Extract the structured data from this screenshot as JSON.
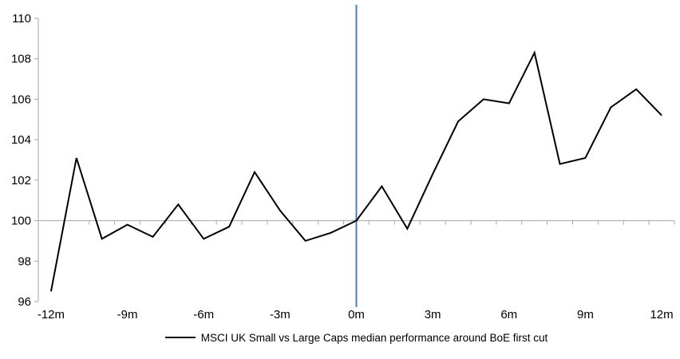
{
  "chart_data": {
    "type": "line",
    "title": "",
    "legend": "MSCI UK Small vs Large Caps median performance around BoE first cut",
    "x": [
      -12,
      -11,
      -10,
      -9,
      -8,
      -7,
      -6,
      -5,
      -4,
      -3,
      -2,
      -1,
      0,
      1,
      2,
      3,
      4,
      5,
      6,
      7,
      8,
      9,
      10,
      11,
      12
    ],
    "series": [
      {
        "name": "MSCI UK Small vs Large Caps median performance around BoE first cut",
        "values": [
          96.5,
          103.1,
          99.1,
          99.8,
          99.2,
          100.8,
          99.1,
          99.7,
          102.4,
          100.5,
          99.0,
          99.4,
          100.0,
          101.7,
          99.6,
          102.3,
          104.9,
          106.0,
          105.8,
          108.3,
          102.8,
          103.1,
          105.6,
          106.5,
          105.2
        ]
      }
    ],
    "xlim": [
      -12,
      12
    ],
    "ylim": [
      96,
      110
    ],
    "yticks": [
      96,
      98,
      100,
      102,
      104,
      106,
      108,
      110
    ],
    "xticks": [
      {
        "m": -12,
        "label": "-12m"
      },
      {
        "m": -9,
        "label": "-9m"
      },
      {
        "m": -6,
        "label": "-6m"
      },
      {
        "m": -3,
        "label": "-3m"
      },
      {
        "m": 0,
        "label": "0m"
      },
      {
        "m": 3,
        "label": "3m"
      },
      {
        "m": 6,
        "label": "6m"
      },
      {
        "m": 9,
        "label": "9m"
      },
      {
        "m": 12,
        "label": "12m"
      }
    ],
    "axis_cross_y": 100,
    "event_line_x": 0,
    "grid": false,
    "legend_position": "bottom",
    "colors": {
      "series": "#000000",
      "event_line": "#4a7ec0",
      "axis": "#a6a6a6",
      "text": "#000000"
    }
  }
}
